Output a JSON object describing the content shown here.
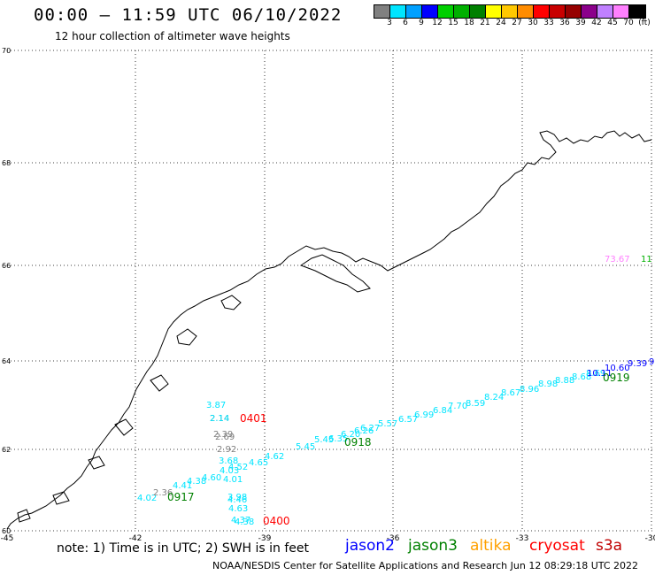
{
  "header": {
    "title": "00:00 – 11:59 UTC 06/10/2022",
    "subtitle": "12 hour collection of altimeter wave heights"
  },
  "colorbar": {
    "colors": [
      "#808080",
      "#00e5ff",
      "#00a0ff",
      "#0000ff",
      "#00d000",
      "#00b000",
      "#008000",
      "#ffff00",
      "#ffc800",
      "#ff8c00",
      "#ff0000",
      "#c80000",
      "#960000",
      "#8b008b",
      "#c080ff",
      "#ff80ff",
      "#000000"
    ],
    "labels": [
      "3",
      "6",
      "9",
      "12",
      "15",
      "18",
      "21",
      "24",
      "27",
      "30",
      "33",
      "36",
      "39",
      "42",
      "45",
      "70",
      "(ft)"
    ]
  },
  "map": {
    "lon_range": [
      -45,
      -30
    ],
    "lat_range": [
      60,
      70
    ],
    "lon_ticks": [
      "-45",
      "-42",
      "-39",
      "-36",
      "-33",
      "-30"
    ],
    "lat_ticks": [
      "60",
      "62",
      "64",
      "66",
      "68",
      "70"
    ],
    "observations": [
      {
        "text": "3.87",
        "color": "#00e5ff"
      },
      {
        "text": "2.14",
        "color": "#808080"
      },
      {
        "text": "2.14",
        "color": "#00e5ff"
      },
      {
        "text": "2.39",
        "color": "#808080"
      },
      {
        "text": "2.69",
        "color": "#808080"
      },
      {
        "text": "2.92",
        "color": "#808080"
      },
      {
        "text": "3.68",
        "color": "#00e5ff"
      },
      {
        "text": "4.03",
        "color": "#00e5ff"
      },
      {
        "text": "4.52",
        "color": "#00e5ff"
      },
      {
        "text": "4.01",
        "color": "#00e5ff"
      },
      {
        "text": "3.98",
        "color": "#00e5ff"
      },
      {
        "text": "4.46",
        "color": "#00e5ff"
      },
      {
        "text": "4.63",
        "color": "#00e5ff"
      },
      {
        "text": "4.37",
        "color": "#00e5ff"
      },
      {
        "text": "4.38",
        "color": "#00e5ff"
      },
      {
        "text": "4.02",
        "color": "#00e5ff"
      },
      {
        "text": "2.36",
        "color": "#808080"
      },
      {
        "text": "4.41",
        "color": "#00e5ff"
      },
      {
        "text": "4.38",
        "color": "#00e5ff"
      },
      {
        "text": "4.60",
        "color": "#00e5ff"
      },
      {
        "text": "4.65",
        "color": "#00e5ff"
      },
      {
        "text": "4.62",
        "color": "#00e5ff"
      },
      {
        "text": "5.45",
        "color": "#00e5ff"
      },
      {
        "text": "5.45",
        "color": "#00e5ff"
      },
      {
        "text": "6.35",
        "color": "#00e5ff"
      },
      {
        "text": "6.20",
        "color": "#00e5ff"
      },
      {
        "text": "6.26",
        "color": "#00e5ff"
      },
      {
        "text": "6.27",
        "color": "#00e5ff"
      },
      {
        "text": "5.57",
        "color": "#00e5ff"
      },
      {
        "text": "6.57",
        "color": "#00e5ff"
      },
      {
        "text": "6.99",
        "color": "#00e5ff"
      },
      {
        "text": "6.84",
        "color": "#00e5ff"
      },
      {
        "text": "7.70",
        "color": "#00e5ff"
      },
      {
        "text": "8.59",
        "color": "#00e5ff"
      },
      {
        "text": "8.24",
        "color": "#00e5ff"
      },
      {
        "text": "8.67",
        "color": "#00e5ff"
      },
      {
        "text": "8.96",
        "color": "#00e5ff"
      },
      {
        "text": "8.98",
        "color": "#00e5ff"
      },
      {
        "text": "8.88",
        "color": "#00e5ff"
      },
      {
        "text": "8.68",
        "color": "#00e5ff"
      },
      {
        "text": "8.69",
        "color": "#00e5ff"
      },
      {
        "text": "10.11",
        "color": "#0000ff"
      },
      {
        "text": "10.60",
        "color": "#0000ff"
      },
      {
        "text": "9.39",
        "color": "#0000ff"
      },
      {
        "text": "9.",
        "color": "#0000ff"
      },
      {
        "text": "73.67",
        "color": "#ff80ff"
      },
      {
        "text": "11",
        "color": "#00b000"
      }
    ],
    "pass_times": [
      {
        "text": "0401",
        "color": "#ff0000"
      },
      {
        "text": "0400",
        "color": "#ff0000"
      },
      {
        "text": "0918",
        "color": "#008000"
      },
      {
        "text": "0917",
        "color": "#008000"
      },
      {
        "text": "0919",
        "color": "#008000"
      }
    ]
  },
  "footer": {
    "note": "note: 1) Time is in UTC; 2) SWH is in feet",
    "satellites": [
      {
        "name": "jason2",
        "color": "#0000ff"
      },
      {
        "name": "jason3",
        "color": "#008000"
      },
      {
        "name": "altika",
        "color": "#ffa000"
      },
      {
        "name": "cryosat",
        "color": "#ff0000"
      },
      {
        "name": "s3a",
        "color": "#c00000"
      }
    ],
    "credit": "NOAA/NESDIS Center for Satellite Applications and Research    Jun 12 08:29:18 UTC 2022"
  }
}
